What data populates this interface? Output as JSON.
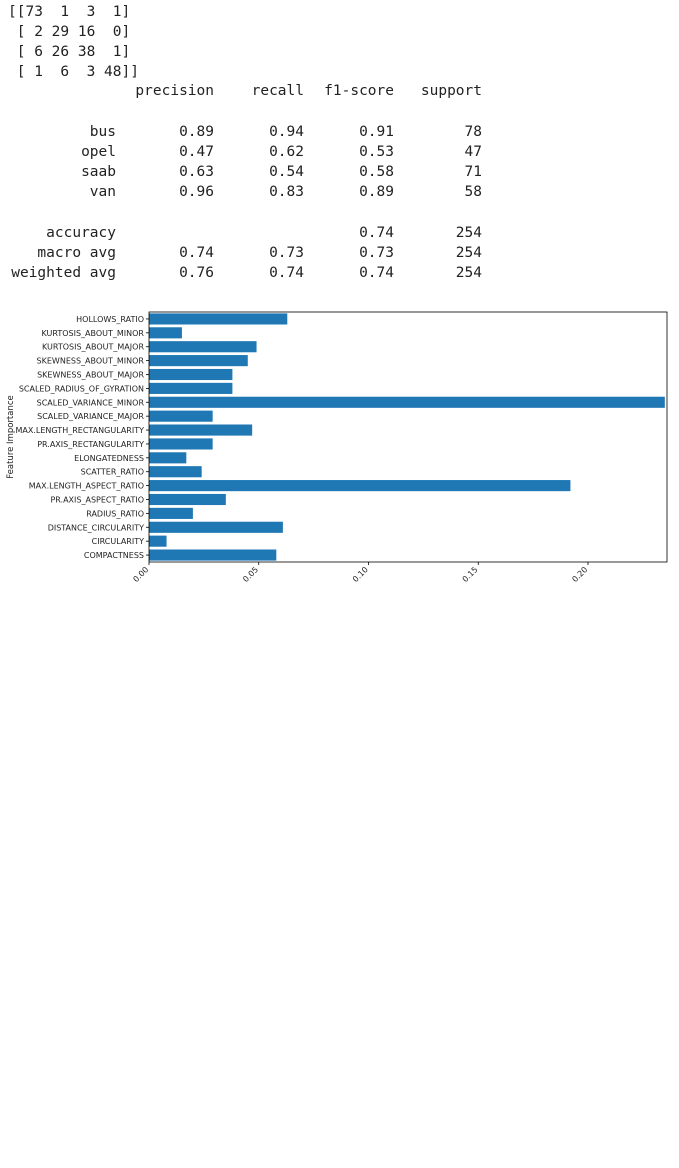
{
  "confusion_matrix": {
    "rows": [
      "[[73  1  3  1]",
      " [ 2 29 16  0]",
      " [ 6 26 38  1]",
      " [ 1  6  3 48]]"
    ]
  },
  "classification_report": {
    "headers": [
      "precision",
      "recall",
      "f1-score",
      "support"
    ],
    "rows": [
      {
        "name": "bus",
        "precision": "0.89",
        "recall": "0.94",
        "f1": "0.91",
        "support": "78"
      },
      {
        "name": "opel",
        "precision": "0.47",
        "recall": "0.62",
        "f1": "0.53",
        "support": "47"
      },
      {
        "name": "saab",
        "precision": "0.63",
        "recall": "0.54",
        "f1": "0.58",
        "support": "71"
      },
      {
        "name": "van",
        "precision": "0.96",
        "recall": "0.83",
        "f1": "0.89",
        "support": "58"
      }
    ],
    "summary": [
      {
        "name": "accuracy",
        "precision": "",
        "recall": "",
        "f1": "0.74",
        "support": "254"
      },
      {
        "name": "macro avg",
        "precision": "0.74",
        "recall": "0.73",
        "f1": "0.73",
        "support": "254"
      },
      {
        "name": "weighted avg",
        "precision": "0.76",
        "recall": "0.74",
        "f1": "0.74",
        "support": "254"
      }
    ]
  },
  "chart_data": {
    "type": "bar",
    "orientation": "horizontal",
    "ylabel": "Feature Importance",
    "xlabel": "",
    "bar_color": "#1f77b4",
    "xlim": [
      0,
      0.236
    ],
    "xticks": [
      0.0,
      0.05,
      0.1,
      0.15,
      0.2
    ],
    "xtick_labels": [
      "0.00",
      "0.05",
      "0.10",
      "0.15",
      "0.20"
    ],
    "categories": [
      "HOLLOWS_RATIO",
      "KURTOSIS_ABOUT_MINOR",
      "KURTOSIS_ABOUT_MAJOR",
      "SKEWNESS_ABOUT_MINOR",
      "SKEWNESS_ABOUT_MAJOR",
      "SCALED_RADIUS_OF_GYRATION",
      "SCALED_VARIANCE_MINOR",
      "SCALED_VARIANCE_MAJOR",
      "MAX.LENGTH_RECTANGULARITY",
      "PR.AXIS_RECTANGULARITY",
      "ELONGATEDNESS",
      "SCATTER_RATIO",
      "MAX.LENGTH_ASPECT_RATIO",
      "PR.AXIS_ASPECT_RATIO",
      "RADIUS_RATIO",
      "DISTANCE_CIRCULARITY",
      "CIRCULARITY",
      "COMPACTNESS"
    ],
    "values": [
      0.063,
      0.015,
      0.049,
      0.045,
      0.038,
      0.038,
      0.235,
      0.029,
      0.047,
      0.029,
      0.017,
      0.024,
      0.192,
      0.035,
      0.02,
      0.061,
      0.008,
      0.058
    ]
  }
}
